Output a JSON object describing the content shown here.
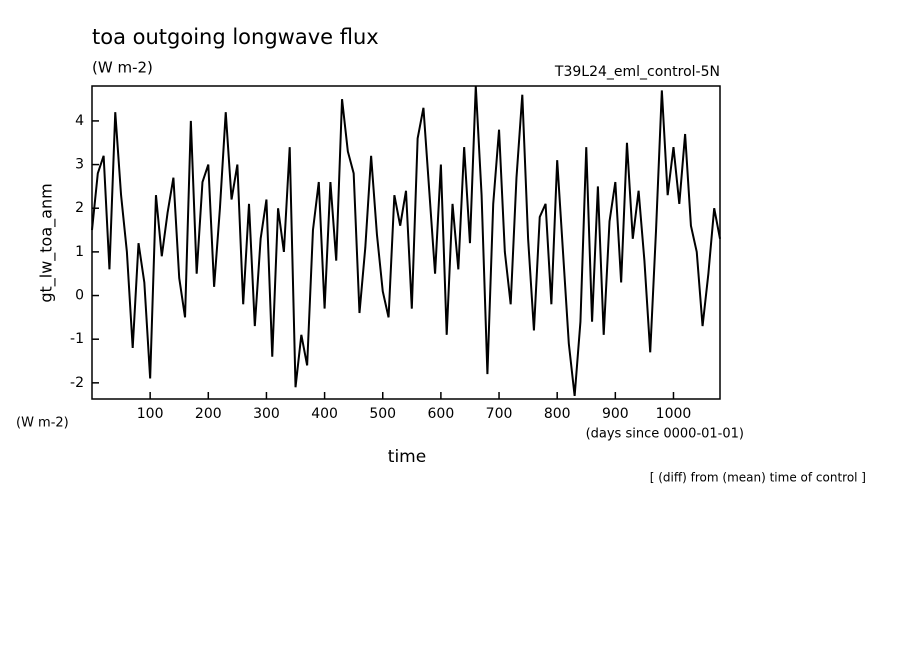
{
  "chart_data": {
    "type": "line",
    "title": "toa outgoing longwave flux",
    "subtitle": "(W m-2)",
    "run_label": "T39L24_eml_control-5N",
    "y_label": "gt_lw_toa_anm",
    "y_unit": "(W m-2)",
    "x_label": "time",
    "x_unit": "(days since 0000-01-01)",
    "note": "[ (diff) from (mean) time of control ]",
    "color": "#000000",
    "x": [
      0,
      10,
      20,
      30,
      40,
      50,
      60,
      70,
      80,
      90,
      100,
      110,
      120,
      130,
      140,
      150,
      160,
      170,
      180,
      190,
      200,
      210,
      220,
      230,
      240,
      250,
      260,
      270,
      280,
      290,
      300,
      310,
      320,
      330,
      340,
      350,
      360,
      370,
      380,
      390,
      400,
      410,
      420,
      430,
      440,
      450,
      460,
      470,
      480,
      490,
      500,
      510,
      520,
      530,
      540,
      550,
      560,
      570,
      580,
      590,
      600,
      610,
      620,
      630,
      640,
      650,
      660,
      670,
      680,
      690,
      700,
      710,
      720,
      730,
      740,
      750,
      760,
      770,
      780,
      790,
      800,
      810,
      820,
      830,
      840,
      850,
      860,
      870,
      880,
      890,
      900,
      910,
      920,
      930,
      940,
      950,
      960,
      970,
      980,
      990,
      1000,
      1010,
      1020,
      1030,
      1040,
      1050,
      1060,
      1070,
      1080
    ],
    "values": [
      1.5,
      2.8,
      3.2,
      0.6,
      4.2,
      2.3,
      1.0,
      -1.2,
      1.2,
      0.3,
      -1.9,
      2.3,
      0.9,
      1.9,
      2.7,
      0.4,
      -0.5,
      4.0,
      0.5,
      2.6,
      3.0,
      0.2,
      2.0,
      4.2,
      2.2,
      3.0,
      -0.2,
      2.1,
      -0.7,
      1.3,
      2.2,
      -1.4,
      2.0,
      1.0,
      3.4,
      -2.1,
      -0.9,
      -1.6,
      1.5,
      2.6,
      -0.3,
      2.6,
      0.8,
      4.5,
      3.3,
      2.8,
      -0.4,
      1.1,
      3.2,
      1.4,
      0.1,
      -0.5,
      2.3,
      1.6,
      2.4,
      -0.3,
      3.6,
      4.3,
      2.4,
      0.5,
      3.0,
      -0.9,
      2.1,
      0.6,
      3.4,
      1.2,
      4.8,
      2.3,
      -1.8,
      2.1,
      3.8,
      1.0,
      -0.2,
      2.7,
      4.6,
      1.3,
      -0.8,
      1.8,
      2.1,
      -0.2,
      3.1,
      1.0,
      -1.1,
      -2.3,
      -0.6,
      3.4,
      -0.6,
      2.5,
      -0.9,
      1.7,
      2.6,
      0.3,
      3.5,
      1.3,
      2.4,
      0.8,
      -1.3,
      1.5,
      4.7,
      2.3,
      3.4,
      2.1,
      3.7,
      1.6,
      1.0,
      -0.7,
      0.5,
      2.0,
      1.3
    ],
    "xlim": [
      0,
      1080
    ],
    "ylim": [
      -2.37,
      4.8
    ],
    "xticks": [
      100,
      200,
      300,
      400,
      500,
      600,
      700,
      800,
      900,
      1000
    ],
    "yticks": [
      -2,
      -1,
      0,
      1,
      2,
      3,
      4
    ]
  }
}
